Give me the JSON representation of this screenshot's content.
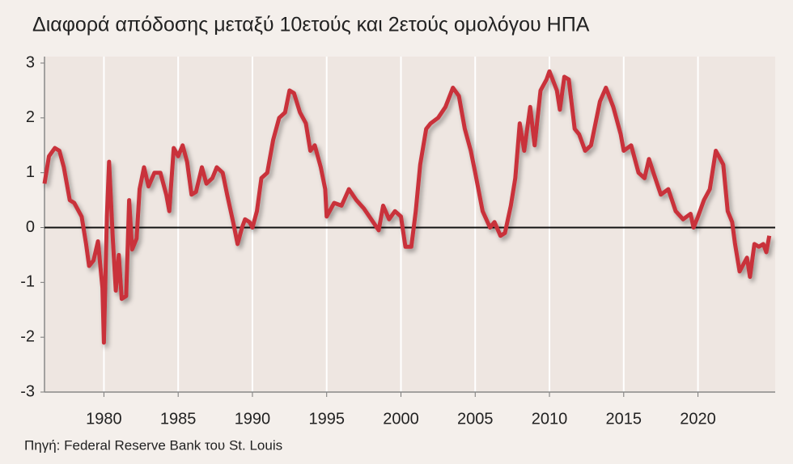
{
  "chart_data": {
    "type": "line",
    "title": "Διαφορά απόδοσης μεταξύ 10ετούς και 2ετούς ομολόγου ΗΠΑ",
    "source": "Πηγή: Federal Reserve Bank του St. Louis",
    "x": [
      1976.0,
      1976.3,
      1976.7,
      1977.0,
      1977.3,
      1977.7,
      1978.0,
      1978.5,
      1978.8,
      1979.0,
      1979.3,
      1979.6,
      1979.9,
      1980.0,
      1980.2,
      1980.35,
      1980.6,
      1980.8,
      1981.0,
      1981.2,
      1981.5,
      1981.7,
      1981.9,
      1982.2,
      1982.4,
      1982.7,
      1983.0,
      1983.4,
      1983.8,
      1984.2,
      1984.4,
      1984.7,
      1985.0,
      1985.3,
      1985.6,
      1985.9,
      1986.2,
      1986.6,
      1986.9,
      1987.3,
      1987.6,
      1988.0,
      1988.3,
      1988.7,
      1989.0,
      1989.3,
      1989.5,
      1989.8,
      1990.0,
      1990.3,
      1990.6,
      1991.0,
      1991.4,
      1991.8,
      1992.2,
      1992.5,
      1992.8,
      1993.2,
      1993.6,
      1993.9,
      1994.2,
      1994.6,
      1994.9,
      1995.0,
      1995.5,
      1996.0,
      1996.5,
      1997.0,
      1997.5,
      1998.0,
      1998.5,
      1998.8,
      1999.2,
      1999.6,
      2000.0,
      2000.3,
      2000.7,
      2001.0,
      2001.3,
      2001.7,
      2002.0,
      2002.5,
      2003.0,
      2003.5,
      2003.9,
      2004.3,
      2004.7,
      2005.0,
      2005.5,
      2006.0,
      2006.3,
      2006.7,
      2007.0,
      2007.4,
      2007.7,
      2008.0,
      2008.3,
      2008.7,
      2009.0,
      2009.4,
      2009.8,
      2010.0,
      2010.5,
      2010.7,
      2011.0,
      2011.3,
      2011.7,
      2012.0,
      2012.4,
      2012.8,
      2013.4,
      2013.8,
      2014.3,
      2014.8,
      2015.0,
      2015.5,
      2016.0,
      2016.4,
      2016.7,
      2017.0,
      2017.5,
      2018.0,
      2018.5,
      2019.0,
      2019.5,
      2019.7,
      2020.0,
      2020.4,
      2020.8,
      2021.2,
      2021.4,
      2021.7,
      2022.0,
      2022.3,
      2022.5,
      2022.8,
      2023.0,
      2023.3,
      2023.5,
      2023.8,
      2024.1,
      2024.4,
      2024.6,
      2024.8
    ],
    "series": [
      {
        "color": "#c9303a",
        "values": [
          0.8,
          1.3,
          1.45,
          1.4,
          1.1,
          0.5,
          0.45,
          0.2,
          -0.3,
          -0.7,
          -0.6,
          -0.25,
          -1.1,
          -2.1,
          0.2,
          1.2,
          -0.2,
          -1.15,
          -0.5,
          -1.3,
          -1.25,
          0.5,
          -0.4,
          -0.2,
          0.7,
          1.1,
          0.75,
          1.0,
          1.0,
          0.6,
          0.3,
          1.45,
          1.3,
          1.5,
          1.2,
          0.6,
          0.65,
          1.1,
          0.8,
          0.9,
          1.1,
          1.0,
          0.6,
          0.1,
          -0.3,
          0.0,
          0.15,
          0.1,
          0.0,
          0.3,
          0.9,
          1.0,
          1.6,
          2.0,
          2.1,
          2.5,
          2.45,
          2.1,
          1.9,
          1.4,
          1.5,
          1.1,
          0.7,
          0.2,
          0.45,
          0.4,
          0.7,
          0.5,
          0.35,
          0.15,
          -0.05,
          0.4,
          0.15,
          0.3,
          0.2,
          -0.35,
          -0.35,
          0.3,
          1.15,
          1.8,
          1.9,
          2.0,
          2.2,
          2.55,
          2.4,
          1.8,
          1.4,
          1.0,
          0.3,
          0.0,
          0.1,
          -0.15,
          -0.1,
          0.4,
          0.9,
          1.9,
          1.4,
          2.2,
          1.5,
          2.5,
          2.7,
          2.85,
          2.5,
          2.15,
          2.75,
          2.7,
          1.8,
          1.7,
          1.4,
          1.5,
          2.3,
          2.55,
          2.2,
          1.7,
          1.4,
          1.5,
          1.0,
          0.9,
          1.25,
          1.0,
          0.6,
          0.7,
          0.3,
          0.15,
          0.25,
          0.0,
          0.2,
          0.5,
          0.7,
          1.4,
          1.3,
          1.15,
          0.3,
          0.1,
          -0.3,
          -0.8,
          -0.7,
          -0.55,
          -0.9,
          -0.3,
          -0.35,
          -0.3,
          -0.45,
          -0.15
        ]
      }
    ],
    "xlim": [
      1976,
      2025.2
    ],
    "xticks": [
      1980,
      1985,
      1990,
      1995,
      2000,
      2005,
      2010,
      2015,
      2020
    ],
    "ylim": [
      -3,
      3
    ],
    "yticks": [
      -3,
      -2,
      -1,
      0,
      1,
      2,
      3
    ],
    "reference_line": 0,
    "grid": true
  }
}
